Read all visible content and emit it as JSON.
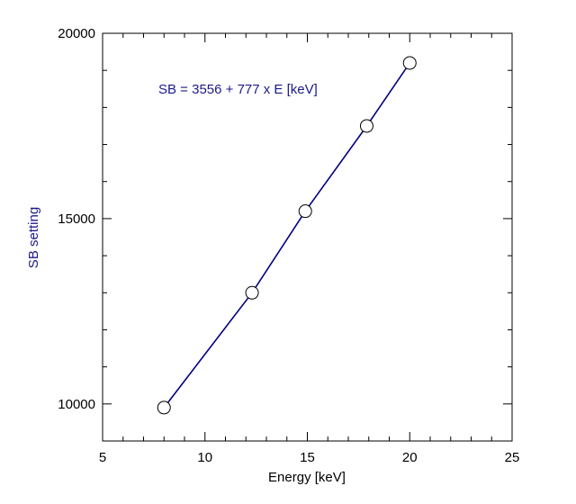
{
  "chart_data": {
    "type": "scatter",
    "title": "",
    "xlabel": "Energy [keV]",
    "ylabel": "SB setting",
    "xlim": [
      5,
      25
    ],
    "ylim": [
      9000,
      20000
    ],
    "x_ticks": [
      5,
      10,
      15,
      20,
      25
    ],
    "y_ticks": [
      10000,
      15000,
      20000
    ],
    "x_minor_step": 1,
    "y_minor_step": 1000,
    "grid": false,
    "annotation": "SB = 3556 + 777 x E [keV]",
    "fit": {
      "intercept": 3556,
      "slope": 777,
      "x_range": [
        8,
        20
      ]
    },
    "points": [
      {
        "x": 8.0,
        "y": 9900
      },
      {
        "x": 12.3,
        "y": 13000
      },
      {
        "x": 14.9,
        "y": 15200
      },
      {
        "x": 17.9,
        "y": 17500
      },
      {
        "x": 20.0,
        "y": 19200
      }
    ],
    "colors": {
      "line": "#000080",
      "ylabel": "#1a1a8c",
      "annotation": "#1a1a8c",
      "marker_fill": "#ffffff",
      "marker_stroke": "#000000",
      "axes": "#000000"
    }
  }
}
